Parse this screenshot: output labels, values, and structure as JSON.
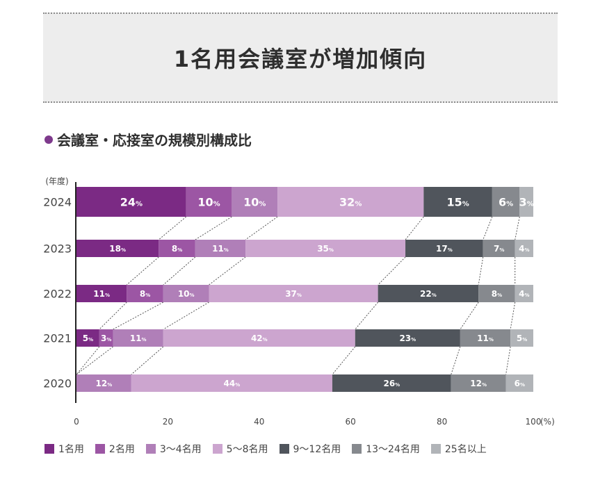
{
  "banner": {
    "title": "1名用会議室が増加傾向"
  },
  "subtitle": "会議室・応接室の規模別構成比",
  "chart_data": {
    "type": "bar",
    "orientation": "horizontal",
    "stacked": true,
    "title": "会議室・応接室の規模別構成比",
    "ylabel": "(年度)",
    "xunit": "(%)",
    "xlim": [
      0,
      100
    ],
    "xticks": [
      "0",
      "20",
      "40",
      "60",
      "80",
      "100"
    ],
    "categories": [
      "2024",
      "2023",
      "2022",
      "2021",
      "2020"
    ],
    "series": [
      {
        "name": "1名用",
        "color": "#7b2a84",
        "values": [
          24,
          18,
          11,
          5,
          0
        ]
      },
      {
        "name": "2名用",
        "color": "#9c56a4",
        "values": [
          10,
          8,
          8,
          3,
          0
        ]
      },
      {
        "name": "3〜4名用",
        "color": "#b07fb8",
        "values": [
          10,
          11,
          10,
          11,
          12
        ]
      },
      {
        "name": "5〜8名用",
        "color": "#cca5cf",
        "values": [
          32,
          35,
          37,
          42,
          44
        ]
      },
      {
        "name": "9〜12名用",
        "color": "#50555c",
        "values": [
          15,
          17,
          22,
          23,
          26
        ]
      },
      {
        "name": "13〜24名用",
        "color": "#86898e",
        "values": [
          6,
          7,
          8,
          11,
          12
        ]
      },
      {
        "name": "25名以上",
        "color": "#b1b4b8",
        "values": [
          3,
          4,
          4,
          5,
          6
        ]
      }
    ],
    "label_unit": "%"
  }
}
